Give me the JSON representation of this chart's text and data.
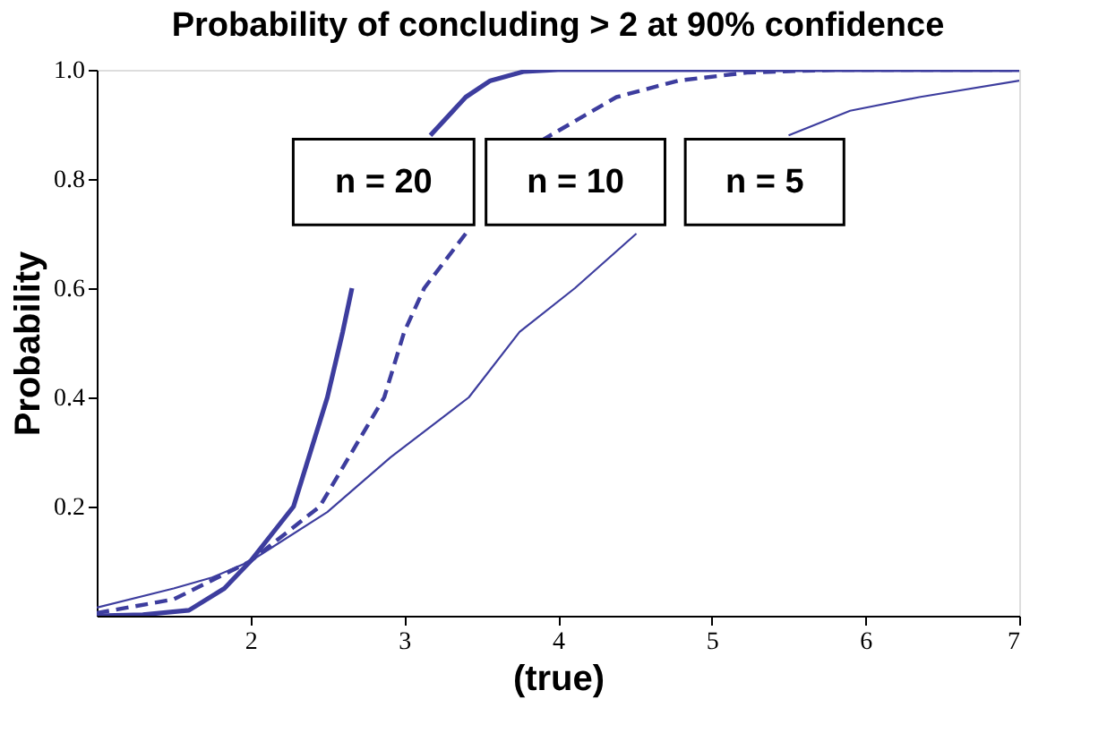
{
  "chart_data": {
    "type": "line",
    "title": "Probability of concluding > 2 at 90% confidence",
    "xlabel": "(true)",
    "ylabel": "Probability",
    "xlim": [
      1,
      7
    ],
    "ylim": [
      0,
      1.0
    ],
    "xticks": [
      2,
      3,
      4,
      5,
      6,
      7
    ],
    "yticks": [
      {
        "value": 0.2,
        "label": "0.2"
      },
      {
        "value": 0.4,
        "label": "0.4"
      },
      {
        "value": 0.6,
        "label": "0.6"
      },
      {
        "value": 0.8,
        "label": "0.8"
      },
      {
        "value": 1.0,
        "label": "1.0"
      }
    ],
    "marker": "none",
    "series": [
      {
        "name": "n = 20",
        "color": "#3d3d9e",
        "line_style": "solid",
        "x": [
          1,
          1.3,
          1.6,
          1.83,
          2,
          2.28,
          2.5,
          2.6,
          2.66,
          2.86,
          3.0,
          3.17,
          3.4,
          3.56,
          3.78,
          4.0,
          5,
          6,
          7
        ],
        "values": [
          0.0,
          0.002,
          0.01,
          0.05,
          0.1,
          0.2,
          0.4,
          0.52,
          0.6,
          null,
          null,
          0.88,
          0.95,
          0.98,
          0.997,
          1.0,
          1.0,
          1.0,
          1.0
        ]
      },
      {
        "name": "n = 10",
        "color": "#3d3d9e",
        "line_style": "dashed",
        "x": [
          1,
          1.5,
          2,
          2.45,
          2.87,
          3.0,
          3.13,
          3.4,
          3.62,
          3.89,
          4.38,
          4.78,
          5.23,
          5.8,
          7
        ],
        "values": [
          0.005,
          0.03,
          0.1,
          0.2,
          0.4,
          0.52,
          0.6,
          0.7,
          null,
          0.87,
          0.95,
          0.98,
          0.995,
          1.0,
          1.0
        ]
      },
      {
        "name": "n = 5",
        "color": "#3d3d9e",
        "line_style": "solid",
        "x": [
          1,
          1.5,
          1.75,
          2,
          2.5,
          2.91,
          3.42,
          3.75,
          4.11,
          4.51,
          4.87,
          5.5,
          5.9,
          6.35,
          7.0
        ],
        "values": [
          0.015,
          0.05,
          0.07,
          0.1,
          0.19,
          0.29,
          0.4,
          0.52,
          0.6,
          0.7,
          null,
          0.88,
          0.925,
          0.95,
          0.98
        ]
      }
    ]
  }
}
